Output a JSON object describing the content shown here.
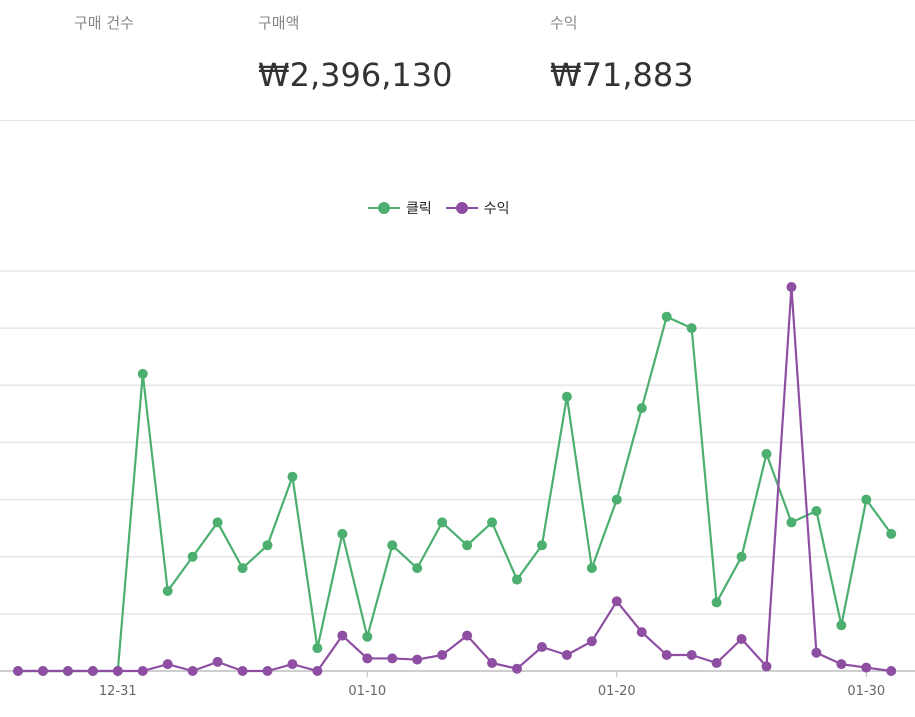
{
  "stats": [
    {
      "label": "구매 건수",
      "value": ""
    },
    {
      "label": "구매액",
      "value": "₩2,396,130"
    },
    {
      "label": "수익",
      "value": "₩71,883"
    }
  ],
  "chart_data": {
    "type": "line",
    "title": "",
    "xlabel": "",
    "ylabel": "",
    "legend_position": "top-center",
    "grid": true,
    "tick_labels": [
      "12-31",
      "01-10",
      "01-20",
      "01-30"
    ],
    "x": [
      "12-27",
      "12-28",
      "12-29",
      "12-30",
      "12-31",
      "01-01",
      "01-02",
      "01-03",
      "01-04",
      "01-05",
      "01-06",
      "01-07",
      "01-08",
      "01-09",
      "01-10",
      "01-11",
      "01-12",
      "01-13",
      "01-14",
      "01-15",
      "01-16",
      "01-17",
      "01-18",
      "01-19",
      "01-20",
      "01-21",
      "01-22",
      "01-23",
      "01-24",
      "01-25",
      "01-26",
      "01-27",
      "01-28",
      "01-29",
      "01-30",
      "01-31"
    ],
    "series": [
      {
        "name": "클릭",
        "color": "#4caf70",
        "values": [
          0,
          0,
          0,
          0,
          0,
          26,
          7,
          10,
          13,
          9,
          11,
          17,
          2,
          12,
          3,
          11,
          9,
          13,
          11,
          13,
          8,
          11,
          24,
          9,
          15,
          23,
          31,
          30,
          6,
          10,
          19,
          13,
          14,
          4,
          15,
          12
        ]
      },
      {
        "name": "수익",
        "color": "#8e4fa3",
        "values": [
          0,
          0,
          0,
          0,
          0,
          0,
          0.6,
          0,
          0.8,
          0,
          0,
          0.6,
          0,
          3.1,
          1.1,
          1.1,
          1.0,
          1.4,
          3.1,
          0.7,
          0.2,
          2.1,
          1.4,
          2.6,
          6.1,
          3.4,
          1.4,
          1.4,
          0.7,
          2.8,
          0.4,
          33.6,
          1.6,
          0.6,
          0.3,
          0
        ]
      }
    ],
    "ylim": [
      0,
      35
    ]
  }
}
